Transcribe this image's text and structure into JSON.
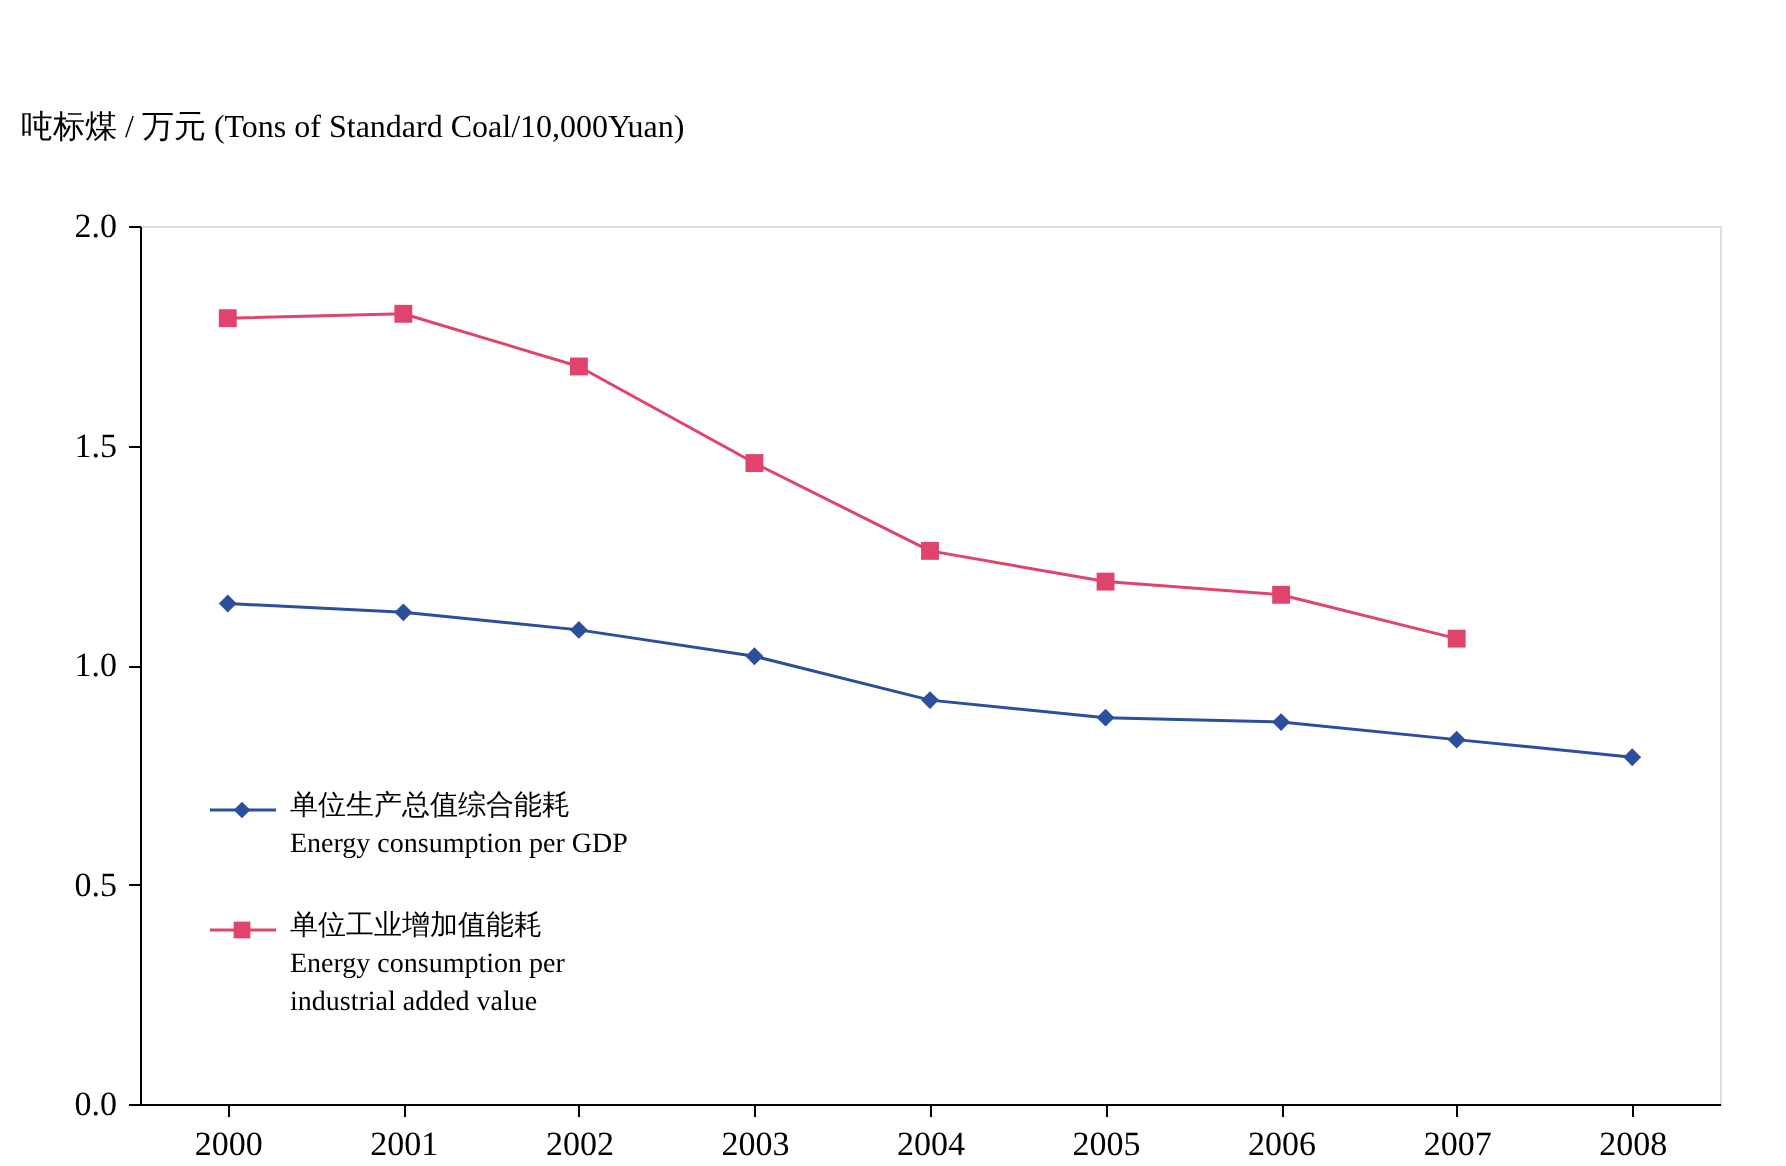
{
  "chart_data": {
    "type": "line",
    "ylabel": "吨标煤 / 万元  (Tons of Standard Coal/10,000Yuan)",
    "categories": [
      "2000",
      "2001",
      "2002",
      "2003",
      "2004",
      "2005",
      "2006",
      "2007",
      "2008"
    ],
    "series": [
      {
        "name": "单位生产总值综合能耗\nEnergy consumption per GDP",
        "color": "#2b4f9c",
        "marker": "diamond",
        "values": [
          1.14,
          1.12,
          1.08,
          1.02,
          0.92,
          0.88,
          0.87,
          0.83,
          0.79
        ]
      },
      {
        "name": "单位工业增加值能耗\nEnergy consumption per\nindustrial added value",
        "color": "#e0446c",
        "marker": "square",
        "values": [
          1.79,
          1.8,
          1.68,
          1.46,
          1.26,
          1.19,
          1.16,
          1.06,
          null
        ]
      }
    ],
    "ylim": [
      0,
      2.0
    ],
    "yticks": [
      {
        "value": 0,
        "label": "0.0"
      },
      {
        "value": 0.5,
        "label": "0.5"
      },
      {
        "value": 1.0,
        "label": "1.0"
      },
      {
        "value": 1.5,
        "label": "1.5"
      },
      {
        "value": 2.0,
        "label": "2.0"
      }
    ],
    "grid": false,
    "legend": "bottom left",
    "line_style": "solid"
  }
}
